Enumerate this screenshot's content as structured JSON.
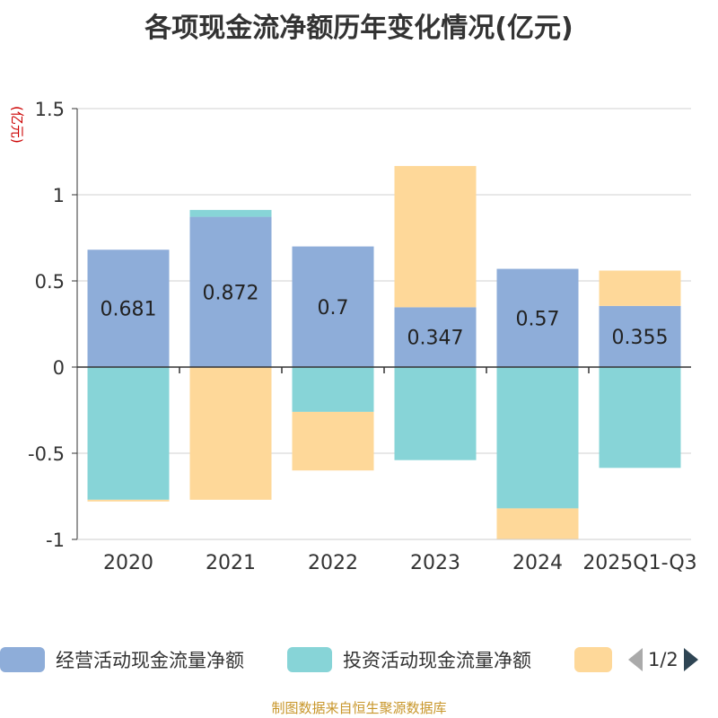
{
  "chart_data": {
    "type": "bar",
    "stacked": true,
    "title": "各项现金流净额历年变化情况(亿元)",
    "ylabel": "(亿元)",
    "categories": [
      "2020",
      "2021",
      "2022",
      "2023",
      "2024",
      "2025Q1-Q3"
    ],
    "ylim": [
      -1,
      1.5
    ],
    "yticks": [
      1.5,
      1,
      0.5,
      0,
      -0.5,
      -1
    ],
    "ytick_labels": [
      "1.5",
      "1",
      "0.5",
      "0",
      "-0.5",
      "-1"
    ],
    "grid": true,
    "legend_position": "bottom",
    "series": [
      {
        "name": "经营活动现金流量净额",
        "color": "#8eadd9",
        "values": [
          0.681,
          0.872,
          0.7,
          0.347,
          0.57,
          0.355
        ],
        "labels": [
          "0.681",
          "0.872",
          "0.7",
          "0.347",
          "0.57",
          "0.355"
        ]
      },
      {
        "name": "投资活动现金流量净额",
        "color": "#87d4d7",
        "values": [
          -0.77,
          0.04,
          -0.26,
          -0.54,
          -0.82,
          -0.585
        ]
      },
      {
        "name": "",
        "color": "#fed899",
        "values": [
          -0.01,
          -0.77,
          -0.34,
          0.82,
          -0.18,
          0.205
        ]
      }
    ]
  },
  "legend": {
    "items": [
      "经营活动现金流量净额",
      "投资活动现金流量净额"
    ],
    "page": "1/2"
  },
  "source": "制图数据来自恒生聚源数据库"
}
